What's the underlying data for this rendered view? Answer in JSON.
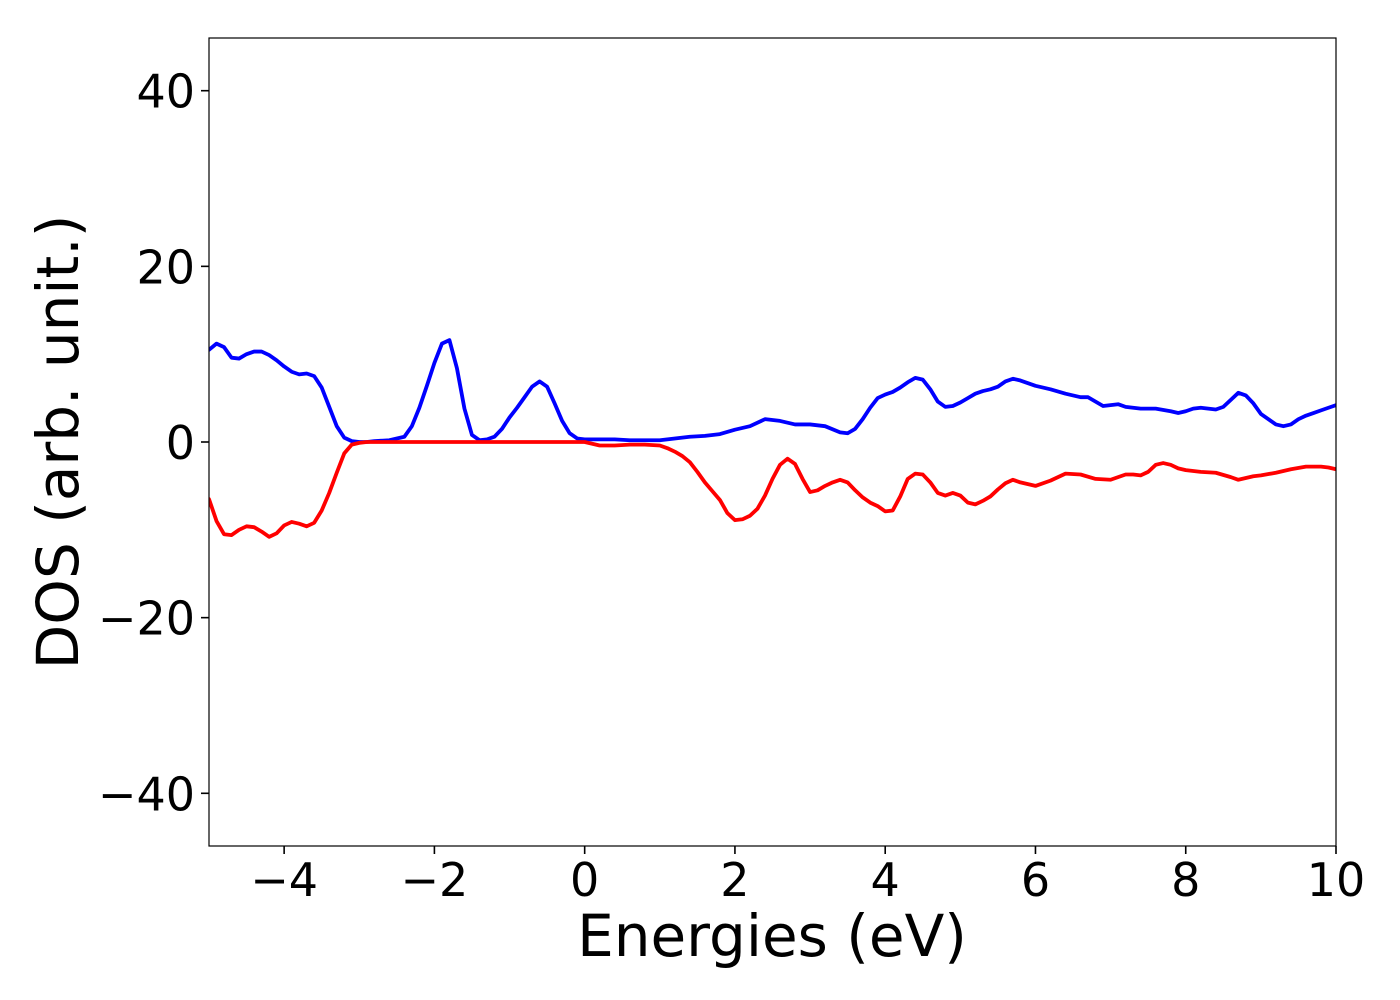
{
  "chart_data": {
    "type": "line",
    "title": "",
    "xlabel": "Energies (eV)",
    "ylabel": "DOS (arb. unit.)",
    "xlim": [
      -5,
      10
    ],
    "ylim": [
      -46,
      46
    ],
    "grid": false,
    "legend": "none",
    "xticks": [
      -4,
      -2,
      0,
      2,
      4,
      6,
      8,
      10
    ],
    "xtick_labels": [
      "−4",
      "−2",
      "0",
      "2",
      "4",
      "6",
      "8",
      "10"
    ],
    "yticks": [
      -40,
      -20,
      0,
      20,
      40
    ],
    "ytick_labels": [
      "−40",
      "−20",
      "0",
      "20",
      "40"
    ],
    "series": [
      {
        "color": "#0000ff",
        "x": [
          -5.0,
          -4.9,
          -4.8,
          -4.7,
          -4.6,
          -4.5,
          -4.4,
          -4.3,
          -4.2,
          -4.1,
          -4.0,
          -3.9,
          -3.8,
          -3.7,
          -3.6,
          -3.5,
          -3.4,
          -3.3,
          -3.2,
          -3.1,
          -3.0,
          -2.9,
          -2.8,
          -2.6,
          -2.4,
          -2.3,
          -2.2,
          -2.1,
          -2.0,
          -1.9,
          -1.8,
          -1.7,
          -1.6,
          -1.5,
          -1.4,
          -1.3,
          -1.2,
          -1.1,
          -1.0,
          -0.9,
          -0.8,
          -0.7,
          -0.6,
          -0.5,
          -0.4,
          -0.3,
          -0.2,
          -0.1,
          0.0,
          0.2,
          0.4,
          0.6,
          0.8,
          1.0,
          1.2,
          1.4,
          1.6,
          1.8,
          2.0,
          2.2,
          2.4,
          2.6,
          2.8,
          3.0,
          3.2,
          3.4,
          3.5,
          3.6,
          3.7,
          3.8,
          3.9,
          4.0,
          4.1,
          4.2,
          4.3,
          4.4,
          4.5,
          4.6,
          4.7,
          4.8,
          4.9,
          5.0,
          5.1,
          5.2,
          5.3,
          5.4,
          5.5,
          5.6,
          5.7,
          5.8,
          6.0,
          6.2,
          6.4,
          6.6,
          6.7,
          6.8,
          6.9,
          7.0,
          7.1,
          7.2,
          7.4,
          7.6,
          7.8,
          7.9,
          8.0,
          8.1,
          8.2,
          8.3,
          8.4,
          8.5,
          8.6,
          8.7,
          8.8,
          8.9,
          9.0,
          9.1,
          9.2,
          9.3,
          9.4,
          9.5,
          9.6,
          9.7,
          9.8,
          9.9,
          10.0
        ],
        "y": [
          10.5,
          11.2,
          10.8,
          9.6,
          9.5,
          10.0,
          10.3,
          10.3,
          9.9,
          9.3,
          8.6,
          8.0,
          7.7,
          7.8,
          7.5,
          6.2,
          4.0,
          1.8,
          0.5,
          0.1,
          0.0,
          0.0,
          0.1,
          0.2,
          0.6,
          1.8,
          3.9,
          6.4,
          9.0,
          11.2,
          11.6,
          8.4,
          3.8,
          0.8,
          0.2,
          0.3,
          0.6,
          1.5,
          2.8,
          3.9,
          5.1,
          6.3,
          6.9,
          6.3,
          4.4,
          2.4,
          1.0,
          0.4,
          0.3,
          0.3,
          0.3,
          0.2,
          0.2,
          0.2,
          0.4,
          0.6,
          0.7,
          0.9,
          1.4,
          1.8,
          2.6,
          2.4,
          2.0,
          2.0,
          1.8,
          1.1,
          1.0,
          1.5,
          2.6,
          3.9,
          5.0,
          5.4,
          5.7,
          6.2,
          6.8,
          7.3,
          7.1,
          6.0,
          4.6,
          4.0,
          4.1,
          4.5,
          5.0,
          5.5,
          5.8,
          6.0,
          6.3,
          6.9,
          7.2,
          7.0,
          6.4,
          6.0,
          5.5,
          5.1,
          5.1,
          4.6,
          4.1,
          4.2,
          4.3,
          4.0,
          3.8,
          3.8,
          3.5,
          3.3,
          3.5,
          3.8,
          3.9,
          3.8,
          3.7,
          4.0,
          4.8,
          5.6,
          5.3,
          4.4,
          3.2,
          2.6,
          2.0,
          1.8,
          2.0,
          2.6,
          3.0,
          3.3,
          3.6,
          3.9,
          4.2
        ]
      },
      {
        "color": "#ff0000",
        "x": [
          -5.0,
          -4.9,
          -4.8,
          -4.7,
          -4.6,
          -4.5,
          -4.4,
          -4.3,
          -4.2,
          -4.1,
          -4.0,
          -3.9,
          -3.8,
          -3.7,
          -3.6,
          -3.5,
          -3.4,
          -3.3,
          -3.2,
          -3.1,
          -3.0,
          -2.9,
          -2.8,
          -2.6,
          -2.0,
          -1.0,
          0.0,
          0.2,
          0.4,
          0.6,
          0.8,
          1.0,
          1.1,
          1.2,
          1.3,
          1.4,
          1.5,
          1.6,
          1.7,
          1.8,
          1.9,
          2.0,
          2.1,
          2.2,
          2.3,
          2.4,
          2.5,
          2.6,
          2.7,
          2.8,
          2.9,
          3.0,
          3.1,
          3.2,
          3.3,
          3.4,
          3.5,
          3.6,
          3.7,
          3.8,
          3.9,
          4.0,
          4.1,
          4.2,
          4.3,
          4.4,
          4.5,
          4.6,
          4.7,
          4.8,
          4.9,
          5.0,
          5.1,
          5.2,
          5.3,
          5.4,
          5.5,
          5.6,
          5.7,
          5.8,
          6.0,
          6.2,
          6.4,
          6.6,
          6.8,
          7.0,
          7.1,
          7.2,
          7.3,
          7.4,
          7.5,
          7.6,
          7.7,
          7.8,
          7.9,
          8.0,
          8.2,
          8.4,
          8.6,
          8.7,
          8.8,
          8.9,
          9.0,
          9.2,
          9.4,
          9.6,
          9.8,
          9.9,
          10.0
        ],
        "y": [
          -6.5,
          -9.0,
          -10.5,
          -10.6,
          -10.0,
          -9.6,
          -9.7,
          -10.2,
          -10.8,
          -10.4,
          -9.5,
          -9.1,
          -9.3,
          -9.6,
          -9.2,
          -7.8,
          -5.8,
          -3.5,
          -1.3,
          -0.3,
          -0.1,
          0.0,
          0.0,
          0.0,
          0.0,
          0.0,
          0.0,
          -0.4,
          -0.4,
          -0.3,
          -0.3,
          -0.4,
          -0.7,
          -1.1,
          -1.6,
          -2.3,
          -3.4,
          -4.6,
          -5.6,
          -6.6,
          -8.1,
          -8.9,
          -8.8,
          -8.4,
          -7.6,
          -6.1,
          -4.2,
          -2.6,
          -1.9,
          -2.5,
          -4.2,
          -5.7,
          -5.5,
          -5.0,
          -4.6,
          -4.3,
          -4.6,
          -5.5,
          -6.3,
          -6.9,
          -7.3,
          -7.9,
          -7.8,
          -6.2,
          -4.2,
          -3.6,
          -3.7,
          -4.6,
          -5.8,
          -6.1,
          -5.8,
          -6.1,
          -6.9,
          -7.1,
          -6.7,
          -6.2,
          -5.4,
          -4.7,
          -4.3,
          -4.6,
          -5.0,
          -4.4,
          -3.6,
          -3.7,
          -4.2,
          -4.3,
          -4.0,
          -3.7,
          -3.7,
          -3.8,
          -3.4,
          -2.6,
          -2.4,
          -2.6,
          -3.0,
          -3.2,
          -3.4,
          -3.5,
          -4.0,
          -4.3,
          -4.1,
          -3.9,
          -3.8,
          -3.5,
          -3.1,
          -2.8,
          -2.8,
          -2.9,
          -3.1
        ]
      }
    ]
  }
}
